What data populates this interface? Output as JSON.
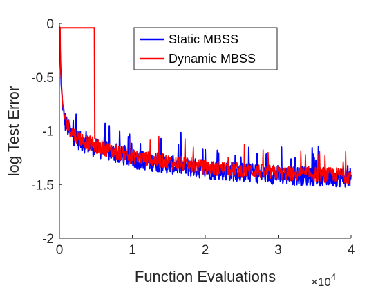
{
  "chart_data": {
    "type": "line",
    "title": "",
    "xlabel": "Function Evaluations",
    "ylabel": "log Test Error",
    "x_multiplier_label": "×10",
    "x_multiplier_exponent": "4",
    "xlim": [
      0,
      40000
    ],
    "ylim": [
      -2,
      0
    ],
    "x_ticks": [
      0,
      10000,
      20000,
      30000,
      40000
    ],
    "x_tick_labels": [
      "0",
      "1",
      "2",
      "3",
      "4"
    ],
    "y_ticks": [
      0,
      -0.5,
      -1,
      -1.5,
      -2
    ],
    "y_tick_labels": [
      "0",
      "-0.5",
      "-1",
      "-1.5",
      "-2"
    ],
    "grid": false,
    "legend_position": "top-right-inside",
    "series": [
      {
        "name": "Static MBSS",
        "color": "#0000FF",
        "x": [
          0,
          200,
          500,
          800,
          1200,
          1600,
          2000,
          2500,
          3000,
          3500,
          4000,
          5000,
          6000,
          7000,
          8000,
          9000,
          10000,
          12000,
          14000,
          16000,
          18000,
          20000,
          22000,
          24000,
          26000,
          28000,
          30000,
          32000,
          34000,
          36000,
          38000,
          40000
        ],
        "values": [
          -0.03,
          -0.55,
          -0.82,
          -0.92,
          -0.98,
          -1.02,
          -1.05,
          -1.08,
          -1.1,
          -1.12,
          -1.13,
          -1.16,
          -1.18,
          -1.2,
          -1.22,
          -1.24,
          -1.26,
          -1.28,
          -1.3,
          -1.32,
          -1.34,
          -1.36,
          -1.37,
          -1.38,
          -1.39,
          -1.4,
          -1.41,
          -1.42,
          -1.42,
          -1.43,
          -1.43,
          -1.44
        ]
      },
      {
        "name": "Dynamic MBSS",
        "color": "#FF0000",
        "x": [
          0,
          100,
          300,
          4800,
          4850,
          5000,
          6000,
          7000,
          8000,
          9000,
          10000,
          12000,
          14000,
          16000,
          18000,
          20000,
          22000,
          24000,
          26000,
          28000,
          30000,
          32000,
          34000,
          36000,
          38000,
          40000
        ],
        "values": [
          -0.03,
          -0.04,
          -0.04,
          -0.04,
          -1.08,
          -1.12,
          -1.16,
          -1.19,
          -1.22,
          -1.24,
          -1.26,
          -1.29,
          -1.31,
          -1.33,
          -1.35,
          -1.36,
          -1.37,
          -1.38,
          -1.39,
          -1.4,
          -1.41,
          -1.41,
          -1.42,
          -1.42,
          -1.43,
          -1.43
        ]
      }
    ]
  }
}
